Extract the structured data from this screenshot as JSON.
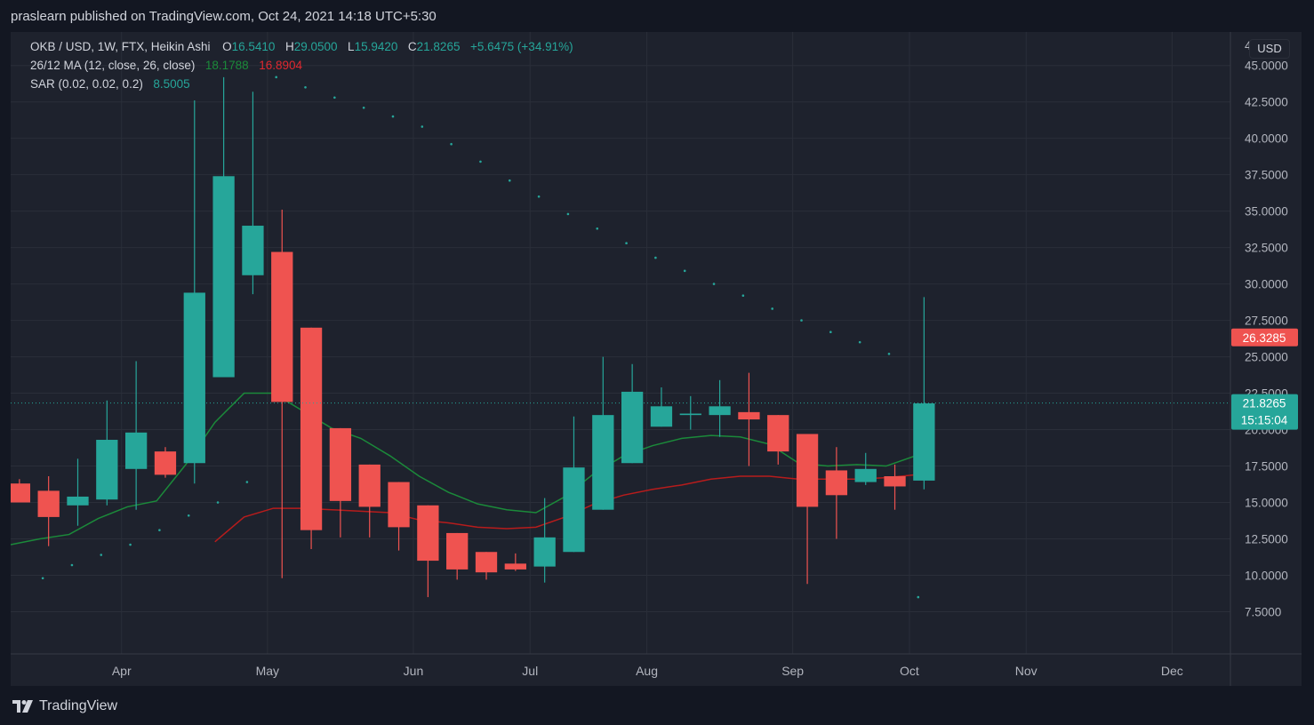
{
  "header": {
    "publisher_text": "praslearn published on TradingView.com, Oct 24, 2021 14:18 UTC+5:30"
  },
  "legend": {
    "symbol": "OKB / USD, 1W, FTX, Heikin Ashi",
    "o_label": "O",
    "o_value": "16.5410",
    "h_label": "H",
    "h_value": "29.0500",
    "l_label": "L",
    "l_value": "15.9420",
    "c_label": "C",
    "c_value": "21.8265",
    "change": "+5.6475 (+34.91%)",
    "ma_label": "26/12 MA (12, close, 26, close)",
    "ma_fast": "18.1788",
    "ma_slow": "16.8904",
    "sar_label": "SAR (0.02, 0.02, 0.2)",
    "sar_value": "8.5005"
  },
  "price_scale": {
    "currency_button": "USD",
    "top_partial_label": "4"
  },
  "footer": {
    "brand": "TradingView"
  },
  "colors": {
    "up": "#26a69a",
    "down": "#ef5350",
    "ma_fast": "#1b8a3a",
    "ma_slow": "#b71c1c",
    "sar": "#26a69a",
    "grid": "#2a2e39",
    "text": "#b2b5be",
    "background": "#1e222d"
  },
  "chart_data": {
    "type": "candlestick",
    "title": "OKB / USD, 1W, FTX, Heikin Ashi",
    "y_ticks": [
      7.5,
      10,
      12.5,
      15,
      17.5,
      20,
      22.5,
      25,
      27.5,
      30,
      32.5,
      35,
      37.5,
      40,
      42.5,
      45
    ],
    "y_tick_labels": [
      "7.5000",
      "10.0000",
      "12.5000",
      "15.0000",
      "17.5000",
      "20.0000",
      "22.5000",
      "25.0000",
      "27.5000",
      "30.0000",
      "32.5000",
      "35.0000",
      "37.5000",
      "40.0000",
      "42.5000",
      "45.0000"
    ],
    "ylim": [
      4.6,
      47.3
    ],
    "x_labels": [
      "Apr",
      "May",
      "Jun",
      "Jul",
      "Aug",
      "Sep",
      "Oct",
      "Nov",
      "Dec"
    ],
    "x_label_weeks": [
      3.5,
      8.5,
      13.5,
      17.5,
      21.5,
      26.5,
      30.5,
      34.5,
      39.5
    ],
    "week_range": [
      -0.3,
      41.5
    ],
    "candles": [
      {
        "o": 16.3,
        "h": 16.6,
        "l": 15.0,
        "c": 15.0
      },
      {
        "o": 15.8,
        "h": 16.8,
        "l": 12.0,
        "c": 14.0
      },
      {
        "o": 14.8,
        "h": 18.0,
        "l": 13.4,
        "c": 15.4
      },
      {
        "o": 15.2,
        "h": 22.0,
        "l": 14.8,
        "c": 19.3
      },
      {
        "o": 17.3,
        "h": 24.7,
        "l": 14.5,
        "c": 19.8
      },
      {
        "o": 18.5,
        "h": 18.8,
        "l": 16.7,
        "c": 16.9
      },
      {
        "o": 17.7,
        "h": 42.6,
        "l": 16.3,
        "c": 29.4
      },
      {
        "o": 23.6,
        "h": 44.2,
        "l": 23.6,
        "c": 37.4
      },
      {
        "o": 30.6,
        "h": 43.2,
        "l": 29.3,
        "c": 34.0
      },
      {
        "o": 32.2,
        "h": 35.1,
        "l": 9.8,
        "c": 21.9
      },
      {
        "o": 27.0,
        "h": 27.0,
        "l": 11.8,
        "c": 13.1
      },
      {
        "o": 20.1,
        "h": 20.1,
        "l": 12.6,
        "c": 15.1
      },
      {
        "o": 17.6,
        "h": 17.6,
        "l": 12.6,
        "c": 14.7
      },
      {
        "o": 16.4,
        "h": 16.4,
        "l": 11.7,
        "c": 13.3
      },
      {
        "o": 14.8,
        "h": 14.8,
        "l": 8.5,
        "c": 11.0
      },
      {
        "o": 12.9,
        "h": 12.9,
        "l": 9.7,
        "c": 10.4
      },
      {
        "o": 11.6,
        "h": 11.6,
        "l": 9.7,
        "c": 10.2
      },
      {
        "o": 10.8,
        "h": 11.5,
        "l": 10.3,
        "c": 10.4
      },
      {
        "o": 10.6,
        "h": 15.3,
        "l": 9.5,
        "c": 12.6
      },
      {
        "o": 11.6,
        "h": 20.9,
        "l": 11.6,
        "c": 17.4
      },
      {
        "o": 14.5,
        "h": 25.0,
        "l": 14.5,
        "c": 21.0
      },
      {
        "o": 17.7,
        "h": 24.5,
        "l": 17.7,
        "c": 22.6
      },
      {
        "o": 20.2,
        "h": 22.9,
        "l": 20.2,
        "c": 21.6
      },
      {
        "o": 21.0,
        "h": 22.3,
        "l": 20.0,
        "c": 21.1
      },
      {
        "o": 21.0,
        "h": 23.4,
        "l": 19.5,
        "c": 21.6
      },
      {
        "o": 21.2,
        "h": 23.9,
        "l": 17.5,
        "c": 20.7
      },
      {
        "o": 21.0,
        "h": 21.0,
        "l": 17.6,
        "c": 18.5
      },
      {
        "o": 19.7,
        "h": 19.7,
        "l": 9.4,
        "c": 14.7
      },
      {
        "o": 17.2,
        "h": 18.8,
        "l": 12.5,
        "c": 15.5
      },
      {
        "o": 16.4,
        "h": 18.4,
        "l": 16.2,
        "c": 17.3
      },
      {
        "o": 16.8,
        "h": 17.6,
        "l": 14.5,
        "c": 16.1
      },
      {
        "o": 16.5,
        "h": 29.1,
        "l": 15.9,
        "c": 21.8
      }
    ],
    "ma_fast": [
      [
        -0.3,
        12.1
      ],
      [
        0.7,
        12.5
      ],
      [
        1.7,
        12.8
      ],
      [
        2.7,
        13.9
      ],
      [
        3.7,
        14.7
      ],
      [
        4.7,
        15.1
      ],
      [
        5.7,
        17.6
      ],
      [
        6.7,
        20.5
      ],
      [
        7.7,
        22.5
      ],
      [
        8.7,
        22.5
      ],
      [
        9.7,
        21.3
      ],
      [
        10.7,
        20.1
      ],
      [
        11.7,
        19.4
      ],
      [
        12.7,
        18.2
      ],
      [
        13.7,
        16.8
      ],
      [
        14.7,
        15.7
      ],
      [
        15.7,
        14.9
      ],
      [
        16.7,
        14.5
      ],
      [
        17.7,
        14.3
      ],
      [
        18.7,
        15.4
      ],
      [
        19.7,
        17.0
      ],
      [
        20.7,
        18.2
      ],
      [
        21.7,
        18.9
      ],
      [
        22.7,
        19.4
      ],
      [
        23.7,
        19.6
      ],
      [
        24.7,
        19.5
      ],
      [
        25.7,
        19.0
      ],
      [
        26.7,
        17.7
      ],
      [
        27.7,
        17.5
      ],
      [
        28.7,
        17.6
      ],
      [
        29.7,
        17.5
      ],
      [
        30.7,
        18.2
      ]
    ],
    "ma_slow": [
      [
        6.7,
        12.3
      ],
      [
        7.7,
        14.0
      ],
      [
        8.7,
        14.6
      ],
      [
        9.7,
        14.6
      ],
      [
        10.7,
        14.5
      ],
      [
        11.7,
        14.4
      ],
      [
        12.7,
        14.3
      ],
      [
        13.7,
        13.8
      ],
      [
        14.7,
        13.6
      ],
      [
        15.7,
        13.3
      ],
      [
        16.7,
        13.2
      ],
      [
        17.7,
        13.3
      ],
      [
        18.7,
        14.0
      ],
      [
        19.7,
        14.9
      ],
      [
        20.7,
        15.5
      ],
      [
        21.7,
        15.9
      ],
      [
        22.7,
        16.2
      ],
      [
        23.7,
        16.6
      ],
      [
        24.7,
        16.8
      ],
      [
        25.7,
        16.8
      ],
      [
        26.7,
        16.6
      ],
      [
        27.7,
        16.6
      ],
      [
        28.7,
        16.6
      ],
      [
        29.7,
        16.7
      ],
      [
        30.7,
        16.9
      ]
    ],
    "sar": [
      [
        0.8,
        9.8
      ],
      [
        1.8,
        10.7
      ],
      [
        2.8,
        11.4
      ],
      [
        3.8,
        12.1
      ],
      [
        4.8,
        13.1
      ],
      [
        5.8,
        14.1
      ],
      [
        6.8,
        15.0
      ],
      [
        7.8,
        16.4
      ],
      [
        8.8,
        44.2
      ],
      [
        9.8,
        43.5
      ],
      [
        10.8,
        42.8
      ],
      [
        11.8,
        42.1
      ],
      [
        12.8,
        41.5
      ],
      [
        13.8,
        40.8
      ],
      [
        14.8,
        39.6
      ],
      [
        15.8,
        38.4
      ],
      [
        16.8,
        37.1
      ],
      [
        17.8,
        36.0
      ],
      [
        18.8,
        34.8
      ],
      [
        19.8,
        33.8
      ],
      [
        20.8,
        32.8
      ],
      [
        21.8,
        31.8
      ],
      [
        22.8,
        30.9
      ],
      [
        23.8,
        30.0
      ],
      [
        24.8,
        29.2
      ],
      [
        25.8,
        28.3
      ],
      [
        26.8,
        27.5
      ],
      [
        27.8,
        26.7
      ],
      [
        28.8,
        26.0
      ],
      [
        29.8,
        25.2
      ],
      [
        30.8,
        8.5
      ]
    ],
    "current_price": 21.8265,
    "current_price_label": "21.8265",
    "countdown_label": "15:15:04",
    "sar_tag_value": 26.3285,
    "sar_tag_label": "26.3285"
  }
}
